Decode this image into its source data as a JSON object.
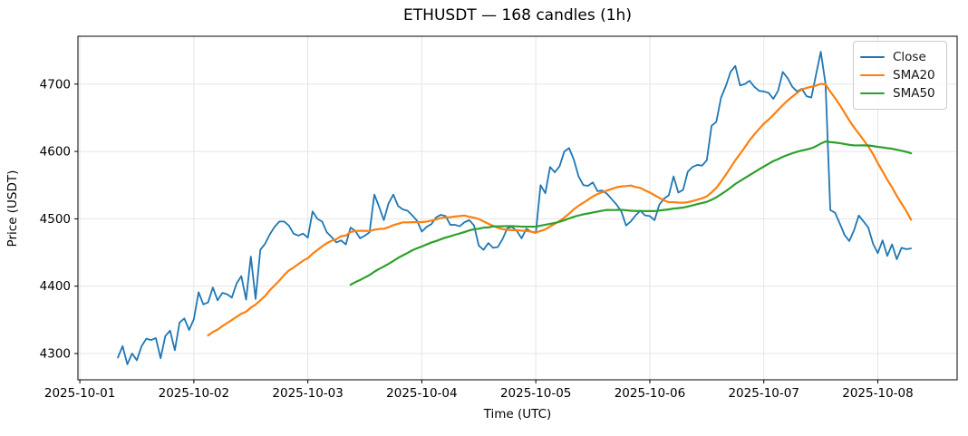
{
  "chart_data": {
    "type": "line",
    "title": "ETHUSDT — 168 candles (1h)",
    "xlabel": "Time (UTC)",
    "ylabel": "Price (USDT)",
    "grid": true,
    "legend_position": "upper right",
    "candles": 168,
    "interval": "1h",
    "first_candle": "2025-10-01 08:00",
    "x_axis": {
      "tick_labels": [
        "2025-10-01",
        "2025-10-02",
        "2025-10-03",
        "2025-10-04",
        "2025-10-05",
        "2025-10-06",
        "2025-10-07",
        "2025-10-08"
      ],
      "tick_hours": [
        0,
        24,
        48,
        72,
        96,
        120,
        144,
        168
      ],
      "first_candle_hour": 8,
      "lim_hours": [
        -0.4,
        184.7
      ]
    },
    "y_axis": {
      "ticks": [
        4300,
        4400,
        4500,
        4600,
        4700
      ],
      "lim": [
        4261,
        4771
      ]
    },
    "series": [
      {
        "name": "Close",
        "color": "#1f77b4",
        "values": [
          4294,
          4311,
          4284,
          4300,
          4290,
          4311,
          4322,
          4320,
          4323,
          4293,
          4326,
          4334,
          4305,
          4346,
          4352,
          4335,
          4351,
          4391,
          4373,
          4376,
          4398,
          4379,
          4390,
          4388,
          4383,
          4404,
          4415,
          4380,
          4444,
          4381,
          4454,
          4463,
          4477,
          4488,
          4496,
          4496,
          4490,
          4478,
          4475,
          4478,
          4472,
          4511,
          4500,
          4496,
          4480,
          4473,
          4465,
          4468,
          4462,
          4487,
          4482,
          4471,
          4475,
          4480,
          4536,
          4518,
          4498,
          4523,
          4536,
          4519,
          4514,
          4512,
          4505,
          4497,
          4481,
          4488,
          4492,
          4502,
          4506,
          4504,
          4491,
          4491,
          4489,
          4495,
          4498,
          4490,
          4460,
          4454,
          4464,
          4457,
          4458,
          4470,
          4486,
          4488,
          4482,
          4471,
          4485,
          4481,
          4479,
          4550,
          4538,
          4577,
          4569,
          4578,
          4600,
          4605,
          4588,
          4563,
          4550,
          4549,
          4554,
          4541,
          4542,
          4537,
          4529,
          4521,
          4511,
          4490,
          4496,
          4505,
          4512,
          4505,
          4504,
          4498,
          4521,
          4530,
          4535,
          4563,
          4539,
          4543,
          4570,
          4577,
          4580,
          4579,
          4587,
          4638,
          4644,
          4680,
          4697,
          4718,
          4727,
          4698,
          4700,
          4705,
          4696,
          4690,
          4689,
          4687,
          4678,
          4690,
          4718,
          4709,
          4696,
          4689,
          4693,
          4682,
          4680,
          4714,
          4748,
          4700,
          4513,
          4509,
          4493,
          4476,
          4467,
          4483,
          4505,
          4496,
          4487,
          4463,
          4449,
          4468,
          4445,
          4462,
          4440,
          4457,
          4455,
          4456
        ]
      },
      {
        "name": "SMA20",
        "color": "#ff7f0e",
        "window": 20,
        "derived_from": "Close"
      },
      {
        "name": "SMA50",
        "color": "#2ca02c",
        "window": 50,
        "derived_from": "Close"
      }
    ],
    "style": {
      "grid_color": "#e5e5e5",
      "spine_color": "#000000",
      "close_line_width": 1.8,
      "sma_line_width": 2.2
    }
  }
}
